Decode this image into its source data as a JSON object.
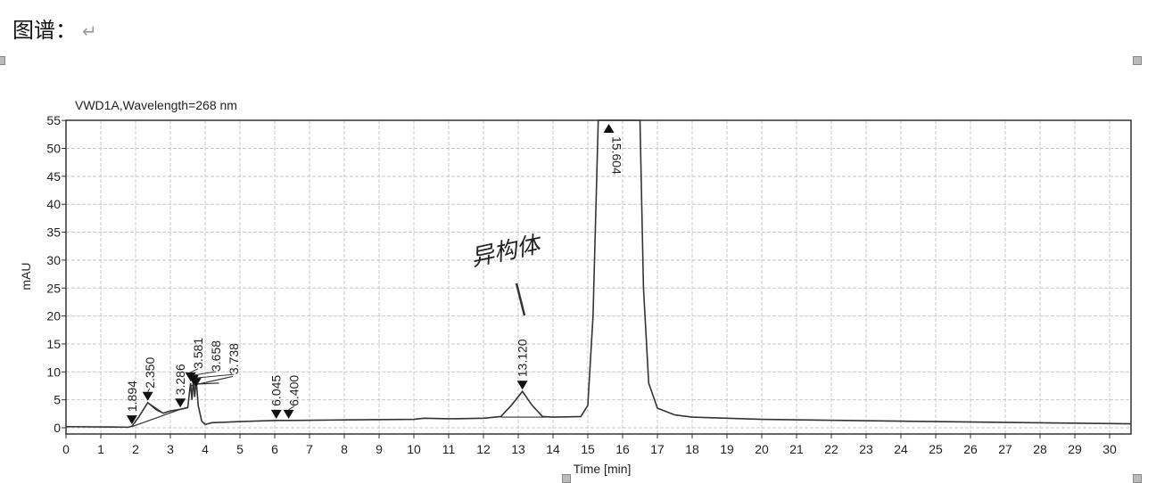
{
  "document": {
    "heading": "图谱：",
    "return_mark": "↵"
  },
  "chart_data": {
    "type": "line",
    "title": "VWD1A,Wavelength=268 nm",
    "xlabel": "Time [min]",
    "ylabel": "mAU",
    "xlim": [
      0,
      30.6
    ],
    "ylim": [
      -1,
      55
    ],
    "xticks": [
      0,
      1,
      2,
      3,
      4,
      5,
      6,
      7,
      8,
      9,
      10,
      11,
      12,
      13,
      14,
      15,
      16,
      17,
      18,
      19,
      20,
      21,
      22,
      23,
      24,
      25,
      26,
      27,
      28,
      29,
      30
    ],
    "yticks": [
      0,
      5,
      10,
      15,
      20,
      25,
      30,
      35,
      40,
      45,
      50,
      55
    ],
    "grid": true,
    "line_color": "#333333",
    "trace": [
      [
        0,
        0.2
      ],
      [
        1.8,
        0.1
      ],
      [
        1.9,
        0.3
      ],
      [
        2.1,
        2.0
      ],
      [
        2.35,
        4.5
      ],
      [
        2.6,
        3.2
      ],
      [
        2.8,
        2.6
      ],
      [
        3.0,
        3.0
      ],
      [
        3.286,
        3.3
      ],
      [
        3.5,
        3.6
      ],
      [
        3.58,
        8.0
      ],
      [
        3.62,
        5.0
      ],
      [
        3.66,
        8.5
      ],
      [
        3.7,
        5.5
      ],
      [
        3.74,
        8.8
      ],
      [
        3.8,
        4.0
      ],
      [
        3.9,
        1.2
      ],
      [
        4.0,
        0.6
      ],
      [
        4.2,
        0.9
      ],
      [
        5,
        1.1
      ],
      [
        6.045,
        1.3
      ],
      [
        6.4,
        1.3
      ],
      [
        8,
        1.4
      ],
      [
        10,
        1.5
      ],
      [
        10.3,
        1.7
      ],
      [
        11,
        1.6
      ],
      [
        12,
        1.7
      ],
      [
        12.5,
        2.0
      ],
      [
        12.8,
        4.0
      ],
      [
        13.12,
        6.5
      ],
      [
        13.4,
        4.0
      ],
      [
        13.7,
        2.0
      ],
      [
        14,
        1.9
      ],
      [
        14.8,
        2.0
      ],
      [
        15.0,
        4.0
      ],
      [
        15.15,
        20
      ],
      [
        15.3,
        60
      ],
      [
        16.5,
        60
      ],
      [
        16.6,
        25
      ],
      [
        16.75,
        8
      ],
      [
        17,
        3.5
      ],
      [
        17.5,
        2.3
      ],
      [
        18,
        1.9
      ],
      [
        20,
        1.5
      ],
      [
        25,
        1.1
      ],
      [
        30.6,
        0.7
      ]
    ],
    "baselines": [
      [
        [
          1.9,
          0.2
        ],
        [
          3.286,
          3.3
        ]
      ],
      [
        [
          2.35,
          4.5
        ],
        [
          2.8,
          2.6
        ]
      ],
      [
        [
          3.58,
          7.5
        ],
        [
          4.8,
          9.2
        ]
      ],
      [
        [
          3.66,
          7.8
        ],
        [
          4.4,
          8.0
        ]
      ],
      [
        [
          12.5,
          1.9
        ],
        [
          13.8,
          1.9
        ]
      ]
    ],
    "peaks": [
      {
        "rt": 1.894,
        "label": "1.894",
        "y": 0.3
      },
      {
        "rt": 2.35,
        "label": "2.350",
        "y": 4.5
      },
      {
        "rt": 3.286,
        "label": "3.286",
        "y": 3.3
      },
      {
        "rt": 3.581,
        "label": "3.581",
        "y": 8.0
      },
      {
        "rt": 3.658,
        "label": "3.658",
        "y": 7.5
      },
      {
        "rt": 3.738,
        "label": "3.738",
        "y": 7.0
      },
      {
        "rt": 6.045,
        "label": "6.045",
        "y": 1.3
      },
      {
        "rt": 6.4,
        "label": "6.400",
        "y": 1.3
      },
      {
        "rt": 13.12,
        "label": "13.120",
        "y": 6.5
      },
      {
        "rt": 15.604,
        "label": "15.604",
        "y": 55,
        "offscale": true
      }
    ],
    "annotation": {
      "text": "异构体",
      "points_to_rt": 13.12
    }
  }
}
